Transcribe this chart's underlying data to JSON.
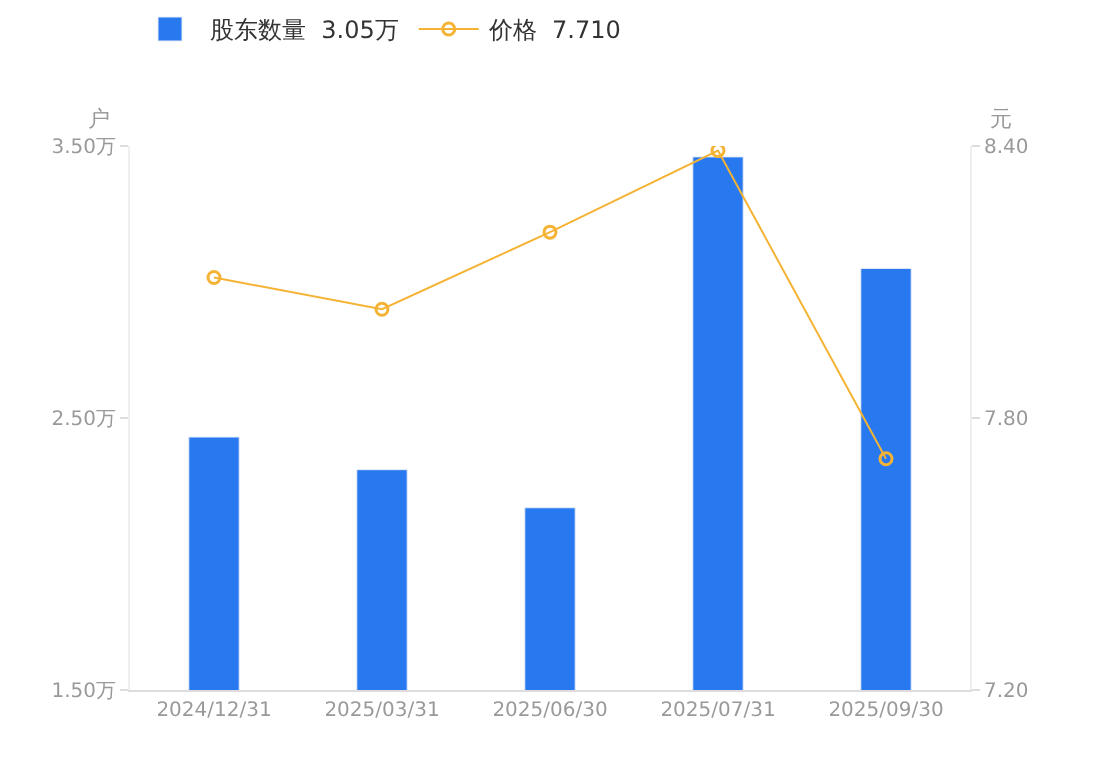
{
  "chart_data": {
    "type": "bar",
    "categories": [
      "2024/12/31",
      "2025/03/31",
      "2025/06/30",
      "2025/07/31",
      "2025/09/30"
    ],
    "series": [
      {
        "name": "股东数量  3.05万",
        "color": "#2878f0",
        "values": [
          2.43,
          2.31,
          2.17,
          3.46,
          3.05
        ]
      },
      {
        "name": "价格  7.710",
        "type": "line",
        "axis": "y2",
        "color": "#f5b335",
        "values": [
          8.11,
          8.04,
          8.21,
          8.39,
          7.71
        ]
      }
    ],
    "ylabel": "户",
    "y2label": "元",
    "ylim": [
      1.5,
      3.5
    ],
    "yticks": [
      {
        "value": 1.5,
        "label": "1.50万"
      },
      {
        "value": 2.5,
        "label": "2.50万"
      },
      {
        "value": 3.5,
        "label": "3.50万"
      }
    ],
    "y2lim": [
      7.2,
      8.4
    ],
    "y2ticks": [
      {
        "value": 7.2,
        "label": "7.20"
      },
      {
        "value": 7.8,
        "label": "7.80"
      },
      {
        "value": 8.4,
        "label": "8.40"
      }
    ],
    "grid": false,
    "legend": "top left",
    "marker": "circle"
  }
}
